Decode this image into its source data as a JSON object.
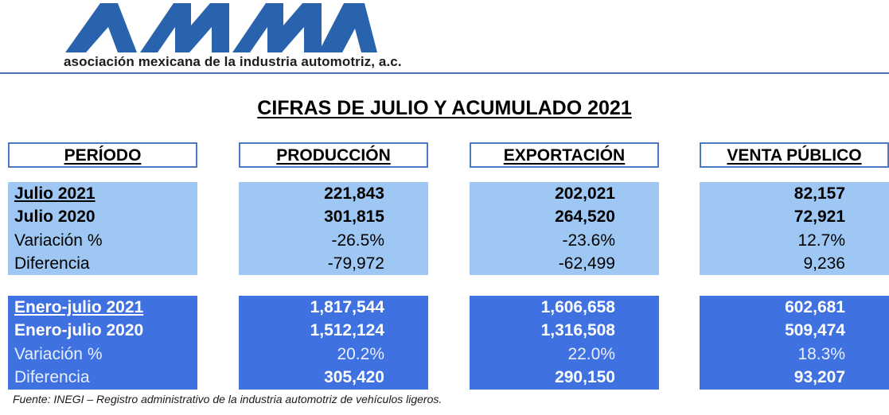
{
  "logo": {
    "letters": "AMIA",
    "color": "#2a63ad"
  },
  "org_name": "asociación mexicana de la industria automotriz, a.c.",
  "title": "CIFRAS DE JULIO Y ACUMULADO 2021",
  "columns": {
    "periodo": "PERÍODO",
    "produccion": "PRODUCCIÓN",
    "exportacion": "EXPORTACIÓN",
    "venta": "VENTA PÚBLICO"
  },
  "monthly": {
    "labels": [
      "Julio 2021",
      "Julio 2020",
      "Variación %",
      "Diferencia"
    ],
    "produccion": [
      "221,843",
      "301,815",
      "-26.5%",
      "-79,972"
    ],
    "exportacion": [
      "202,021",
      "264,520",
      "-23.6%",
      "-62,499"
    ],
    "venta": [
      "82,157",
      "72,921",
      "12.7%",
      "9,236"
    ]
  },
  "cumulative": {
    "labels": [
      "Enero-julio 2021",
      "Enero-julio 2020",
      "Variación %",
      "Diferencia"
    ],
    "produccion": [
      "1,817,544",
      "1,512,124",
      "20.2%",
      "305,420"
    ],
    "exportacion": [
      "1,606,658",
      "1,316,508",
      "22.0%",
      "290,150"
    ],
    "venta": [
      "602,681",
      "509,474",
      "18.3%",
      "93,207"
    ]
  },
  "colors": {
    "light_block": "#9ec8f3",
    "dark_block": "#3f72e0",
    "header_border": "#4c78c4",
    "rule": "#4b6fb1"
  },
  "source": "Fuente: INEGI – Registro administrativo de la industria automotriz de vehículos ligeros."
}
